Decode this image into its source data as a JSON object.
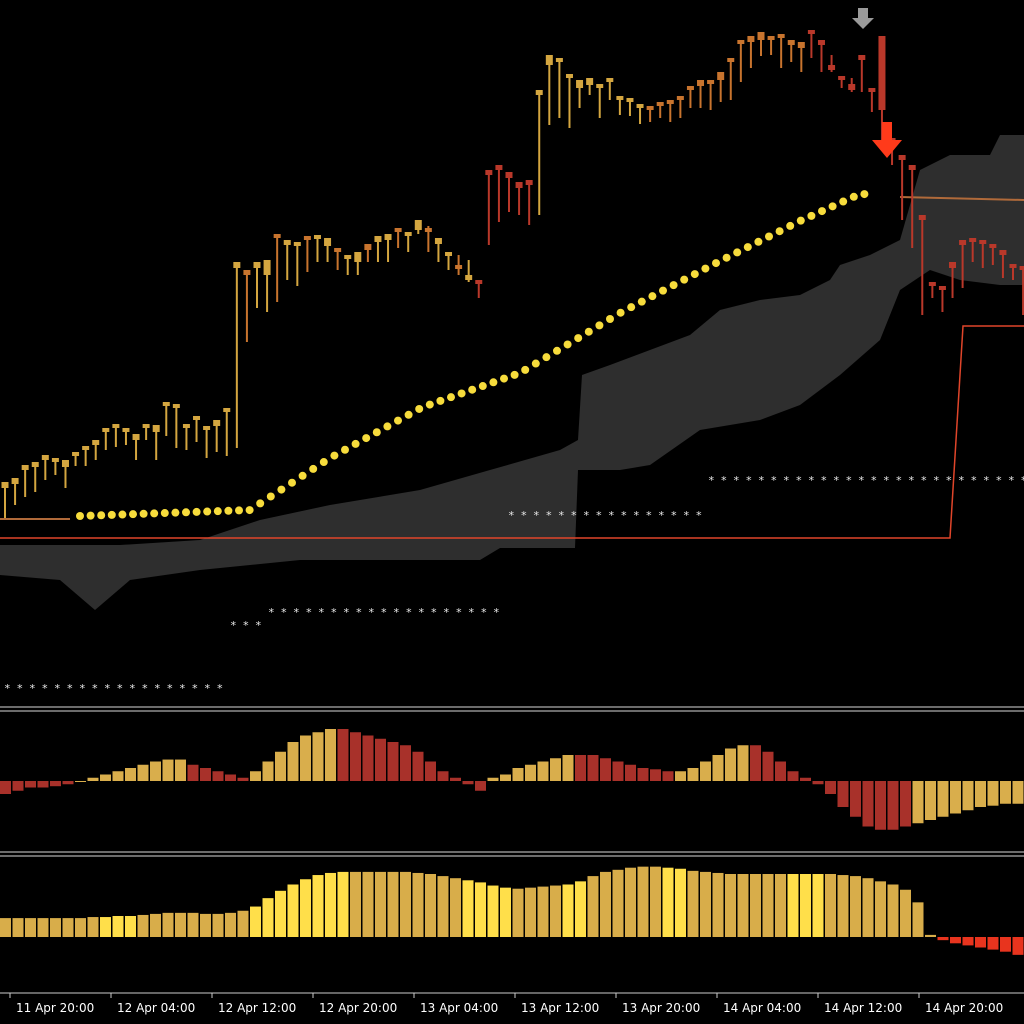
{
  "chart_data": {
    "type": "candlestick",
    "colors": {
      "background": "#000000",
      "candle_gold": "#d4a640",
      "candle_orange": "#c8742e",
      "candle_red": "#b9382a",
      "ma_dots": "#f7dc3c",
      "ma_dots_bear": "#e83a2a",
      "cloud": "#2e2e2e",
      "step_line": "#e0452a",
      "signal_red": "#ff3a1a",
      "signal_grey": "#9a9a9a",
      "hist_gold": "#d9ae4c",
      "hist_red": "#a8312a",
      "bar_yellow": "#ffdf4a",
      "bar_gold": "#d8ad4a",
      "bar_red": "#e8341e",
      "separator": "#d8d8d8"
    },
    "x_tick_labels": [
      "11 Apr 20:00",
      "12 Apr 04:00",
      "12 Apr 12:00",
      "12 Apr 20:00",
      "13 Apr 04:00",
      "13 Apr 12:00",
      "13 Apr 20:00",
      "14 Apr 04:00",
      "14 Apr 12:00",
      "14 Apr 20:00"
    ],
    "candles_ohlc": [
      [
        510,
        518,
        488,
        482
      ],
      [
        500,
        505,
        484,
        478
      ],
      [
        492,
        497,
        470,
        465
      ],
      [
        485,
        492,
        467,
        462
      ],
      [
        478,
        480,
        460,
        455
      ],
      [
        470,
        475,
        462,
        458
      ],
      [
        472,
        488,
        467,
        460
      ],
      [
        460,
        466,
        455,
        452
      ],
      [
        458,
        466,
        450,
        446
      ],
      [
        455,
        460,
        445,
        440
      ],
      [
        442,
        450,
        432,
        428
      ],
      [
        440,
        447,
        428,
        424
      ],
      [
        438,
        445,
        432,
        428
      ],
      [
        445,
        460,
        440,
        434
      ],
      [
        432,
        440,
        428,
        424
      ],
      [
        445,
        460,
        432,
        425
      ],
      [
        428,
        436,
        405,
        402
      ],
      [
        440,
        448,
        408,
        404
      ],
      [
        442,
        450,
        428,
        424
      ],
      [
        432,
        442,
        420,
        416
      ],
      [
        448,
        458,
        430,
        426
      ],
      [
        445,
        452,
        426,
        420
      ],
      [
        452,
        456,
        412,
        408
      ],
      [
        330,
        448,
        268,
        262
      ],
      [
        330,
        342,
        275,
        270
      ],
      [
        302,
        308,
        268,
        262
      ],
      [
        295,
        312,
        275,
        260
      ],
      [
        300,
        302,
        238,
        234
      ],
      [
        272,
        280,
        245,
        240
      ],
      [
        280,
        286,
        246,
        242
      ],
      [
        262,
        272,
        240,
        236
      ],
      [
        250,
        262,
        238,
        235
      ],
      [
        248,
        262,
        246,
        238
      ],
      [
        262,
        270,
        252,
        248
      ],
      [
        270,
        275,
        258,
        255
      ],
      [
        268,
        275,
        262,
        252
      ],
      [
        256,
        262,
        250,
        244
      ],
      [
        252,
        262,
        242,
        236
      ],
      [
        248,
        262,
        240,
        234
      ],
      [
        245,
        248,
        232,
        228
      ],
      [
        245,
        252,
        236,
        232
      ],
      [
        226,
        234,
        230,
        220
      ],
      [
        226,
        252,
        232,
        228
      ],
      [
        252,
        262,
        244,
        238
      ],
      [
        258,
        270,
        256,
        252
      ],
      [
        255,
        275,
        268,
        265
      ],
      [
        260,
        282,
        280,
        275
      ],
      [
        290,
        298,
        280,
        280
      ],
      [
        243,
        245,
        175,
        170
      ],
      [
        215,
        222,
        170,
        165
      ],
      [
        188,
        212,
        178,
        172
      ],
      [
        205,
        215,
        188,
        182
      ],
      [
        215,
        225,
        185,
        180
      ],
      [
        210,
        215,
        95,
        90
      ],
      [
        118,
        125,
        65,
        55
      ],
      [
        110,
        118,
        62,
        58
      ],
      [
        118,
        128,
        78,
        74
      ],
      [
        92,
        108,
        88,
        80
      ],
      [
        85,
        95,
        85,
        78
      ],
      [
        105,
        118,
        88,
        84
      ],
      [
        95,
        100,
        82,
        78
      ],
      [
        110,
        115,
        100,
        96
      ],
      [
        106,
        116,
        102,
        98
      ],
      [
        118,
        124,
        108,
        104
      ],
      [
        115,
        122,
        110,
        106
      ],
      [
        110,
        118,
        106,
        102
      ],
      [
        120,
        122,
        104,
        100
      ],
      [
        115,
        118,
        100,
        96
      ],
      [
        105,
        108,
        90,
        86
      ],
      [
        102,
        108,
        86,
        80
      ],
      [
        98,
        110,
        84,
        80
      ],
      [
        92,
        102,
        80,
        72
      ],
      [
        90,
        100,
        62,
        58
      ],
      [
        70,
        82,
        44,
        40
      ],
      [
        58,
        68,
        42,
        36
      ],
      [
        50,
        56,
        40,
        32
      ],
      [
        48,
        55,
        40,
        36
      ],
      [
        58,
        68,
        38,
        34
      ],
      [
        55,
        62,
        45,
        40
      ],
      [
        62,
        72,
        48,
        42
      ],
      [
        50,
        58,
        30,
        30
      ],
      [
        45,
        72,
        45,
        40
      ],
      [
        55,
        72,
        70,
        65
      ],
      [
        76,
        88,
        80,
        76
      ],
      [
        78,
        92,
        90,
        84
      ],
      [
        80,
        92,
        60,
        55
      ],
      [
        110,
        112,
        90,
        88
      ],
      [
        145,
        150,
        110,
        36
      ],
      [
        150,
        165,
        140,
        138
      ],
      [
        165,
        220,
        160,
        155
      ],
      [
        220,
        248,
        170,
        165
      ],
      [
        300,
        315,
        220,
        215
      ],
      [
        290,
        298,
        285,
        282
      ],
      [
        305,
        312,
        290,
        286
      ],
      [
        280,
        298,
        268,
        262
      ],
      [
        280,
        288,
        245,
        240
      ],
      [
        248,
        262,
        242,
        238
      ],
      [
        252,
        268,
        242,
        240
      ],
      [
        255,
        265,
        248,
        244
      ],
      [
        268,
        278,
        255,
        250
      ],
      [
        272,
        280,
        268,
        264
      ],
      [
        278,
        315,
        270,
        266
      ]
    ],
    "histogram_values": [
      -2,
      -1.5,
      -1,
      -1,
      -0.8,
      -0.5,
      0,
      0.5,
      1,
      1.5,
      2,
      2.5,
      3,
      3.3,
      3.3,
      2.5,
      2,
      1.5,
      1,
      0.5,
      1.5,
      3,
      4.5,
      6,
      7,
      7.5,
      8,
      8,
      7.5,
      7,
      6.5,
      6,
      5.5,
      4.5,
      3,
      1.5,
      0.5,
      -0.5,
      -1.5,
      0.5,
      1,
      2,
      2.5,
      3,
      3.5,
      4,
      4,
      4,
      3.5,
      3,
      2.5,
      2,
      1.8,
      1.5,
      1.5,
      2,
      3,
      4,
      5,
      5.5,
      5.5,
      4.5,
      3,
      1.5,
      0.5,
      -0.5,
      -2,
      -4,
      -5.5,
      -7,
      -7.5,
      -7.5,
      -7,
      -6.5,
      -6,
      -5.5,
      -5,
      -4.5,
      -4,
      -3.8,
      -3.5,
      -3.5,
      -3.5
    ],
    "histogram_colors": [
      "r",
      "r",
      "r",
      "r",
      "r",
      "r",
      "g",
      "g",
      "g",
      "g",
      "g",
      "g",
      "g",
      "g",
      "g",
      "r",
      "r",
      "r",
      "r",
      "r",
      "g",
      "g",
      "g",
      "g",
      "g",
      "g",
      "g",
      "r",
      "r",
      "r",
      "r",
      "r",
      "r",
      "r",
      "r",
      "r",
      "r",
      "r",
      "r",
      "g",
      "g",
      "g",
      "g",
      "g",
      "g",
      "g",
      "r",
      "r",
      "r",
      "r",
      "r",
      "r",
      "r",
      "r",
      "g",
      "g",
      "g",
      "g",
      "g",
      "g",
      "r",
      "r",
      "r",
      "r",
      "r",
      "r",
      "r",
      "r",
      "r",
      "r",
      "r",
      "r",
      "r",
      "g",
      "g",
      "g",
      "g",
      "g",
      "g",
      "g",
      "g",
      "g",
      "g"
    ],
    "strength_values": [
      1.8,
      1.8,
      1.8,
      1.8,
      1.8,
      1.8,
      1.8,
      1.9,
      1.9,
      2,
      2,
      2.1,
      2.2,
      2.3,
      2.3,
      2.3,
      2.2,
      2.2,
      2.3,
      2.5,
      2.9,
      3.7,
      4.4,
      5,
      5.5,
      5.9,
      6.1,
      6.2,
      6.2,
      6.2,
      6.2,
      6.2,
      6.2,
      6.1,
      6,
      5.8,
      5.6,
      5.4,
      5.2,
      4.9,
      4.7,
      4.6,
      4.7,
      4.8,
      4.9,
      5,
      5.3,
      5.8,
      6.2,
      6.4,
      6.6,
      6.7,
      6.7,
      6.6,
      6.5,
      6.3,
      6.2,
      6.1,
      6.0,
      6.0,
      6.0,
      6.0,
      6.0,
      6.0,
      6.0,
      6.0,
      6.0,
      5.9,
      5.8,
      5.6,
      5.3,
      5.0,
      4.5,
      3.3,
      0.2,
      -0.3,
      -0.6,
      -0.8,
      -1.0,
      -1.2,
      -1.4,
      -1.7,
      -2.0,
      -2.3,
      -2.5,
      -2.7,
      -2.9
    ],
    "strength_colors": [
      "g",
      "g",
      "g",
      "g",
      "g",
      "g",
      "g",
      "g",
      "y",
      "y",
      "y",
      "g",
      "g",
      "g",
      "g",
      "g",
      "g",
      "g",
      "g",
      "g",
      "y",
      "y",
      "y",
      "y",
      "y",
      "y",
      "y",
      "y",
      "g",
      "g",
      "g",
      "g",
      "g",
      "g",
      "g",
      "g",
      "g",
      "y",
      "y",
      "y",
      "y",
      "g",
      "g",
      "g",
      "g",
      "y",
      "y",
      "g",
      "g",
      "g",
      "g",
      "g",
      "g",
      "y",
      "y",
      "g",
      "g",
      "g",
      "g",
      "g",
      "g",
      "g",
      "g",
      "y",
      "y",
      "y",
      "g",
      "g",
      "g",
      "g",
      "g",
      "g",
      "g",
      "g",
      "g",
      "r",
      "r",
      "r",
      "r",
      "r",
      "r",
      "r",
      "r",
      "r",
      "r",
      "r",
      "r"
    ]
  }
}
